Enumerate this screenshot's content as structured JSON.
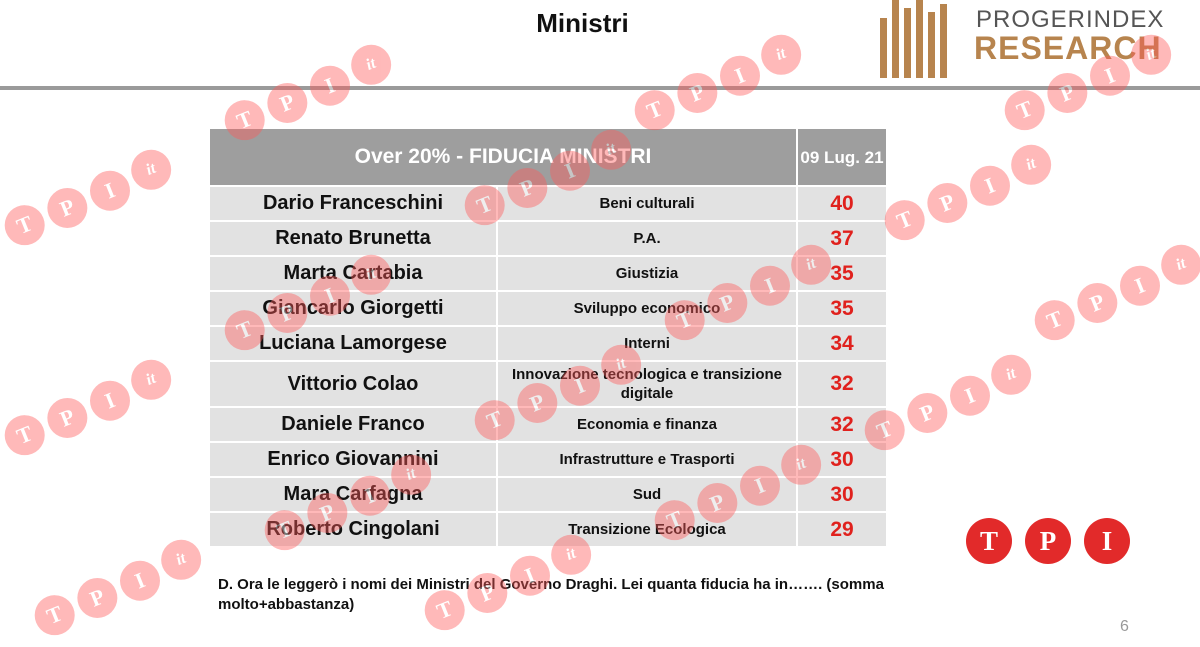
{
  "header": {
    "title": "Ministri"
  },
  "brand": {
    "line1": "PROGERINDEX",
    "line2": "RESEARCH",
    "color": "#b7844e"
  },
  "table": {
    "header_title": "Over 20% - FIDUCIA MINISTRI",
    "header_date": "09 Lug. 21",
    "rows": [
      {
        "name": "Dario Franceschini",
        "dept": "Beni culturali",
        "value": "40"
      },
      {
        "name": "Renato Brunetta",
        "dept": "P.A.",
        "value": "37"
      },
      {
        "name": "Marta Cartabia",
        "dept": "Giustizia",
        "value": "35"
      },
      {
        "name": "Giancarlo Giorgetti",
        "dept": "Sviluppo economico",
        "value": "35"
      },
      {
        "name": "Luciana Lamorgese",
        "dept": "Interni",
        "value": "34"
      },
      {
        "name": "Vittorio Colao",
        "dept": "Innovazione tecnologica e transizione digitale",
        "value": "32"
      },
      {
        "name": "Daniele Franco",
        "dept": "Economia e finanza",
        "value": "32"
      },
      {
        "name": "Enrico Giovannini",
        "dept": "Infrastrutture e Trasporti",
        "value": "30"
      },
      {
        "name": "Mara Carfagna",
        "dept": "Sud",
        "value": "30"
      },
      {
        "name": "Roberto Cingolani",
        "dept": "Transizione Ecologica",
        "value": "29"
      }
    ]
  },
  "footnote": "D. Ora le leggerò i nomi dei Ministri del Governo Draghi. Lei quanta fiducia ha in……. (somma molto+abbastanza)",
  "page_number": "6",
  "tpi_logo": {
    "letters": [
      "T",
      "P",
      "I"
    ],
    "color": "#e22a2a"
  },
  "watermark": {
    "letters": [
      "T",
      "P",
      "I",
      "it"
    ],
    "color": "#ff5a5a"
  }
}
